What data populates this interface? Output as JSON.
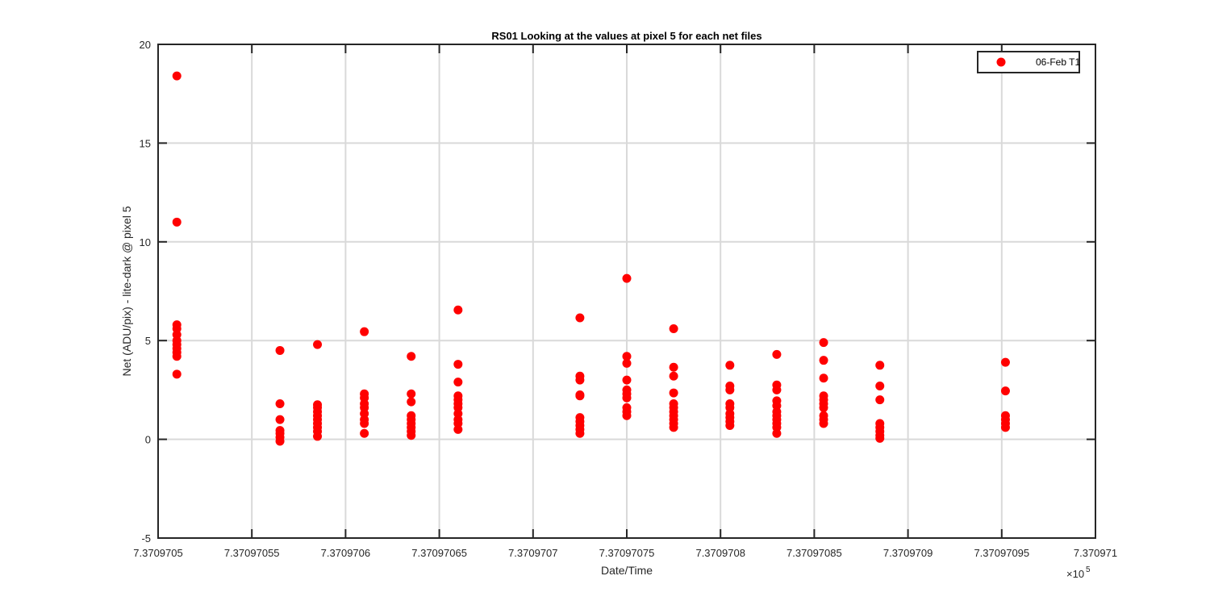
{
  "chart_data": {
    "type": "scatter",
    "title": "RS01  Looking at the values at pixel 5 for each net files",
    "xlabel": "Date/Time",
    "ylabel": "Net (ADU/pix) - lite-dark @ pixel 5",
    "x_exponent_label": "×10",
    "x_exponent_power": "5",
    "xlim": [
      7.3709705,
      7.370971
    ],
    "ylim": [
      -5,
      20
    ],
    "x_ticks": [
      7.3709705,
      7.37097055,
      7.3709706,
      7.37097065,
      7.3709707,
      7.37097075,
      7.3709708,
      7.37097085,
      7.3709709,
      7.37097095,
      7.370971
    ],
    "x_tick_labels": [
      "7.3709705",
      "7.37097055",
      "7.3709706",
      "7.37097065",
      "7.3709707",
      "7.37097075",
      "7.3709708",
      "7.37097085",
      "7.3709709",
      "7.37097095",
      "7.370971"
    ],
    "y_ticks": [
      -5,
      0,
      5,
      10,
      15,
      20
    ],
    "y_tick_labels": [
      "-5",
      "0",
      "5",
      "10",
      "15",
      "20"
    ],
    "grid": true,
    "legend_position": "top-right",
    "colors": {
      "marker": "#ff0000",
      "grid": "#d9d9d9",
      "axis": "#262626"
    },
    "series": [
      {
        "name": "06-Feb T1",
        "groups": [
          {
            "x": 7.37097051,
            "y": [
              18.4,
              11.0,
              5.8,
              5.6,
              5.3,
              5.0,
              4.8,
              4.6,
              4.4,
              4.2,
              3.3
            ]
          },
          {
            "x": 7.370970565,
            "y": [
              4.5,
              1.8,
              1.0,
              0.45,
              0.3,
              0.1,
              -0.1
            ]
          },
          {
            "x": 7.370970585,
            "y": [
              4.8,
              1.75,
              1.6,
              1.4,
              1.2,
              1.0,
              0.8,
              0.6,
              0.4,
              0.15
            ]
          },
          {
            "x": 7.37097061,
            "y": [
              5.45,
              2.3,
              2.1,
              1.8,
              1.6,
              1.3,
              1.0,
              0.8,
              0.3
            ]
          },
          {
            "x": 7.370970635,
            "y": [
              4.2,
              2.3,
              1.9,
              1.2,
              1.0,
              0.8,
              0.6,
              0.4,
              0.2
            ]
          },
          {
            "x": 7.37097066,
            "y": [
              6.55,
              3.8,
              2.9,
              2.2,
              2.0,
              1.8,
              1.6,
              1.3,
              1.0,
              0.8,
              0.5
            ]
          },
          {
            "x": 7.370970725,
            "y": [
              6.15,
              3.2,
              3.0,
              2.25,
              2.2,
              1.1,
              0.9,
              0.7,
              0.5,
              0.3
            ]
          },
          {
            "x": 7.37097075,
            "y": [
              8.15,
              4.2,
              3.85,
              3.0,
              2.5,
              2.3,
              2.1,
              1.6,
              1.4,
              1.2
            ]
          },
          {
            "x": 7.370970775,
            "y": [
              5.6,
              3.65,
              3.2,
              2.35,
              1.8,
              1.6,
              1.4,
              1.2,
              1.0,
              0.8,
              0.6
            ]
          },
          {
            "x": 7.370970805,
            "y": [
              3.75,
              2.7,
              2.5,
              1.8,
              1.6,
              1.3,
              1.1,
              0.9,
              0.7
            ]
          },
          {
            "x": 7.37097083,
            "y": [
              4.3,
              2.75,
              2.5,
              1.95,
              1.7,
              1.4,
              1.2,
              1.0,
              0.8,
              0.6,
              0.3
            ]
          },
          {
            "x": 7.370970855,
            "y": [
              4.9,
              4.0,
              3.1,
              2.2,
              2.0,
              1.8,
              1.6,
              1.2,
              1.0,
              0.8
            ]
          },
          {
            "x": 7.370970885,
            "y": [
              3.75,
              2.7,
              2.0,
              0.8,
              0.6,
              0.4,
              0.2,
              0.05
            ]
          },
          {
            "x": 7.370970952,
            "y": [
              3.9,
              2.45,
              1.2,
              1.0,
              0.8,
              0.6
            ]
          }
        ]
      }
    ]
  }
}
